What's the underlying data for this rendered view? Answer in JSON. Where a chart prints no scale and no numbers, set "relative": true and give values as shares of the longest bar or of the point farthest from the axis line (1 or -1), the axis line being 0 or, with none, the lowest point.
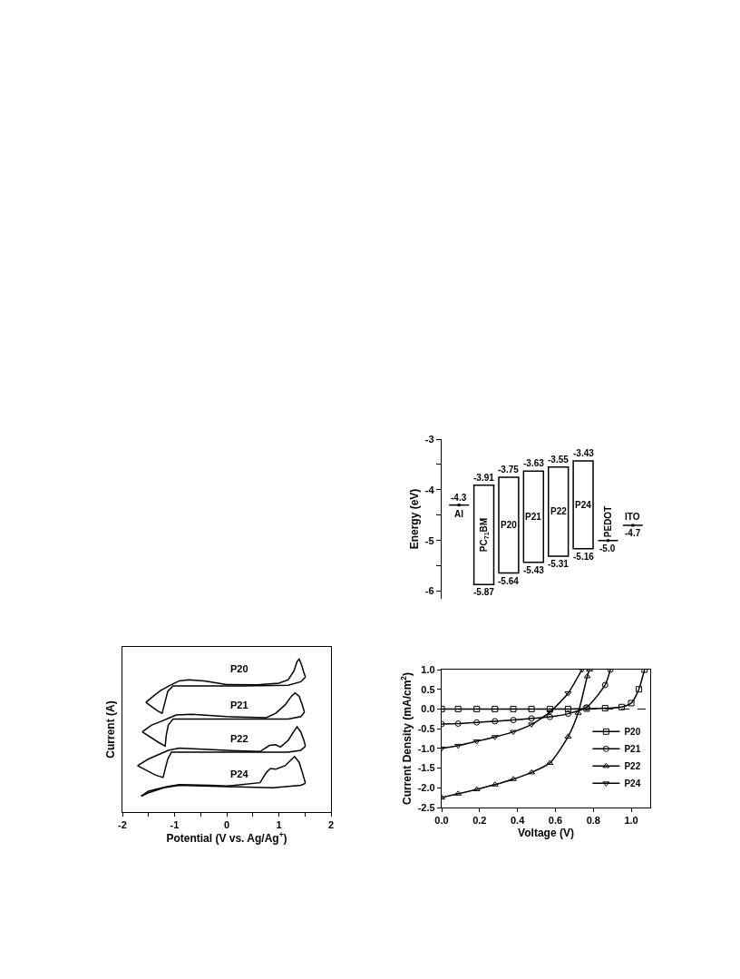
{
  "chart_data": [
    {
      "type": "bar",
      "ylabel": "Energy (eV)",
      "categories": [
        "Al",
        "PC$_{71}$BM",
        "P20",
        "P21",
        "P22",
        "P24",
        "PEDOT",
        "ITO"
      ],
      "ylim": [
        -6.15,
        -3
      ],
      "yticks": [
        -3,
        {
          "value": -3.5,
          "label": null
        },
        -4,
        {
          "value": -4.5,
          "label": null
        },
        -5,
        {
          "value": -5.5,
          "label": null
        },
        -6
      ],
      "tick_labels": "y",
      "grid": false,
      "legend": false,
      "series": [
        {
          "type": "bar",
          "color": "#000000",
          "values": [
            null,
            1.96,
            1.89,
            1.8,
            1.76,
            1.73,
            null,
            null
          ],
          "base": [
            null,
            -5.87,
            -5.64,
            -5.43,
            -5.31,
            -5.16,
            null,
            null
          ]
        },
        {
          "type": "scatter",
          "color": "#000000",
          "values": [
            -4.3,
            null,
            null,
            null,
            null,
            null,
            -5.0,
            -4.7
          ],
          "value_labels": [
            "-4.3",
            null,
            null,
            null,
            null,
            null,
            "-5.0",
            "-4.7"
          ]
        }
      ],
      "annotations": [
        {
          "text": "-3.91",
          "x": "PC$_{71}$BM",
          "y": -3.91
        },
        {
          "text": "-5.87",
          "x": "PC$_{71}$BM",
          "y": -5.87
        },
        {
          "text": "-3.75",
          "x": "P20",
          "y": -3.75
        },
        {
          "text": "-5.64",
          "x": "P20",
          "y": -5.64
        },
        {
          "text": "-3.63",
          "x": "P21",
          "y": -3.63
        },
        {
          "text": "-5.43",
          "x": "P21",
          "y": -5.43
        },
        {
          "text": "-3.55",
          "x": "P22",
          "y": -3.55
        },
        {
          "text": "-5.31",
          "x": "P22",
          "y": -5.31
        },
        {
          "text": "-3.43",
          "x": "P24",
          "y": -3.43
        },
        {
          "text": "-5.16",
          "x": "P24",
          "y": -5.16
        }
      ]
    },
    {
      "type": "line",
      "xlabel": "Potential (V vs. Ag/Ag$^{+}$)",
      "ylabel": "Current (A)",
      "relative": true,
      "xlim": [
        -2,
        2
      ],
      "xticks": [
        -2,
        {
          "value": -1.5,
          "label": null
        },
        -1,
        {
          "value": -0.5,
          "label": null
        },
        0,
        {
          "value": 0.5,
          "label": null
        },
        1,
        {
          "value": 1.5,
          "label": null
        },
        2
      ],
      "grid": false,
      "legend": false,
      "marker": "none",
      "series": [
        {
          "name": "P20",
          "color": "#000000",
          "x": [
            -1.55,
            -1.41,
            -1.27,
            -1.12,
            -0.91,
            -0.73,
            -0.43,
            0,
            0.59,
            1.0,
            1.18,
            1.29,
            1.35,
            1.39,
            1.43,
            1.48,
            1.51
          ],
          "values": [
            0.717,
            0.757,
            0.794,
            0.823,
            0.858,
            0.865,
            0.858,
            0.834,
            0.832,
            0.843,
            0.865,
            0.923,
            0.985,
            1.0,
            0.967,
            0.912,
            0.883
          ]
        },
        {
          "color": "#000000",
          "x": [
            1.51,
            1.42,
            1.18,
            0.29,
            -0.31,
            -1.03,
            -1.13,
            -1.18,
            -1.24,
            -1.33,
            -1.55
          ],
          "values": [
            0.883,
            0.852,
            0.83,
            0.825,
            0.825,
            0.825,
            0.79,
            0.723,
            0.646,
            0.662,
            0.717
          ]
        },
        {
          "name": "P21",
          "color": "#000000",
          "x": [
            -1.62,
            -1.44,
            -1.27,
            -1.12,
            -0.97,
            -0.67,
            0,
            0.76,
            0.94,
            1.12,
            1.24,
            1.31,
            1.39,
            1.45,
            1.49
          ],
          "values": [
            0.524,
            0.569,
            0.591,
            0.613,
            0.635,
            0.639,
            0.624,
            0.617,
            0.646,
            0.701,
            0.757,
            0.779,
            0.757,
            0.701,
            0.653
          ]
        },
        {
          "color": "#000000",
          "x": [
            1.49,
            1.42,
            1.18,
            0,
            -1.03,
            -1.12,
            -1.16,
            -1.18,
            -1.3,
            -1.62
          ],
          "values": [
            0.653,
            0.624,
            0.608,
            0.608,
            0.608,
            0.569,
            0.502,
            0.431,
            0.454,
            0.524
          ]
        },
        {
          "name": "P22",
          "color": "#000000",
          "x": [
            -1.71,
            -1.5,
            -1.27,
            -1.12,
            -0.91,
            0,
            0.64,
            0.82,
            0.94,
            1.03,
            1.18,
            1.29,
            1.35,
            1.42,
            1.48,
            1.51
          ],
          "values": [
            0.303,
            0.347,
            0.381,
            0.403,
            0.418,
            0.403,
            0.396,
            0.436,
            0.44,
            0.425,
            0.469,
            0.529,
            0.558,
            0.524,
            0.469,
            0.431
          ]
        },
        {
          "color": "#000000",
          "x": [
            1.51,
            1.42,
            1.18,
            0,
            -1.06,
            -1.13,
            -1.18,
            -1.22,
            -1.36,
            -1.71
          ],
          "values": [
            0.431,
            0.403,
            0.392,
            0.392,
            0.392,
            0.347,
            0.281,
            0.226,
            0.241,
            0.303
          ]
        },
        {
          "name": "P24",
          "color": "#000000",
          "x": [
            -1.64,
            -1.5,
            -1.15,
            -0.91,
            -0.31,
            0,
            0.64,
            0.76,
            0.84,
            0.94,
            1.12,
            1.3,
            1.39,
            1.45,
            1.51
          ],
          "values": [
            0.104,
            0.137,
            0.166,
            0.179,
            0.175,
            0.17,
            0.192,
            0.259,
            0.285,
            0.281,
            0.303,
            0.363,
            0.325,
            0.259,
            0.188
          ]
        },
        {
          "color": "#000000",
          "x": [
            1.51,
            1.42,
            0.88,
            0,
            -0.91,
            -1.21,
            -1.5,
            -1.64
          ],
          "values": [
            0.188,
            0.175,
            0.159,
            0.166,
            0.175,
            0.159,
            0.126,
            0.104
          ]
        }
      ]
    },
    {
      "type": "line",
      "xlabel": "Voltage (V)",
      "ylabel": "Current Density (mA/cm$^{2}$)",
      "xlim": [
        0,
        1.1
      ],
      "xticks": [
        {
          "value": 0,
          "label": "0.0"
        },
        {
          "value": 0.2,
          "label": "0.2"
        },
        {
          "value": 0.4,
          "label": "0.4"
        },
        {
          "value": 0.6,
          "label": "0.6"
        },
        {
          "value": 0.8,
          "label": "0.8"
        },
        {
          "value": 1.0,
          "label": "1.0"
        }
      ],
      "ylim": [
        -2.5,
        1.0
      ],
      "yticks": [
        {
          "value": -2.5,
          "label": "-2.5"
        },
        {
          "value": -2,
          "label": "-2.0"
        },
        {
          "value": -1.5,
          "label": "-1.5"
        },
        {
          "value": -1,
          "label": "-1.0"
        },
        {
          "value": -0.5,
          "label": "-0.5"
        },
        {
          "value": 0,
          "label": "0.0"
        },
        {
          "value": 0.5,
          "label": "0.5"
        },
        {
          "value": 1,
          "label": "1.0"
        }
      ],
      "grid": false,
      "legend": "bottom right",
      "ref_lines": [
        {
          "axis": "y",
          "value": 0,
          "label": null,
          "color": "#000000",
          "line_style": "dashed"
        }
      ],
      "series": [
        {
          "name": "P20",
          "color": "#000000",
          "marker": "square",
          "x": [
            0,
            0.087,
            0.185,
            0.281,
            0.378,
            0.474,
            0.571,
            0.667,
            0.765,
            0.862,
            0.95,
            1.0,
            1.04,
            1.07
          ],
          "values": [
            0,
            0,
            0,
            0,
            0,
            0,
            0,
            0,
            0.01,
            0.02,
            0.05,
            0.15,
            0.5,
            1.0
          ]
        },
        {
          "name": "P21",
          "color": "#000000",
          "marker": "circle",
          "x": [
            0,
            0.087,
            0.185,
            0.281,
            0.378,
            0.474,
            0.571,
            0.667,
            0.765,
            0.862,
            0.89
          ],
          "values": [
            -0.38,
            -0.37,
            -0.34,
            -0.31,
            -0.28,
            -0.24,
            -0.2,
            -0.12,
            0.04,
            0.61,
            1.0
          ]
        },
        {
          "name": "P22",
          "color": "#000000",
          "marker": "triangle",
          "x": [
            0,
            0.087,
            0.185,
            0.281,
            0.378,
            0.474,
            0.571,
            0.667,
            0.72,
            0.768,
            0.78
          ],
          "values": [
            -2.25,
            -2.15,
            -2.04,
            -1.92,
            -1.78,
            -1.61,
            -1.37,
            -0.7,
            -0.1,
            0.83,
            1.0
          ]
        },
        {
          "name": "P24",
          "color": "#000000",
          "marker": "triangle-down",
          "x": [
            0,
            0.087,
            0.185,
            0.281,
            0.378,
            0.474,
            0.571,
            0.667,
            0.74
          ],
          "values": [
            -1.0,
            -0.93,
            -0.82,
            -0.71,
            -0.58,
            -0.39,
            -0.08,
            0.4,
            1.0
          ]
        }
      ]
    }
  ]
}
